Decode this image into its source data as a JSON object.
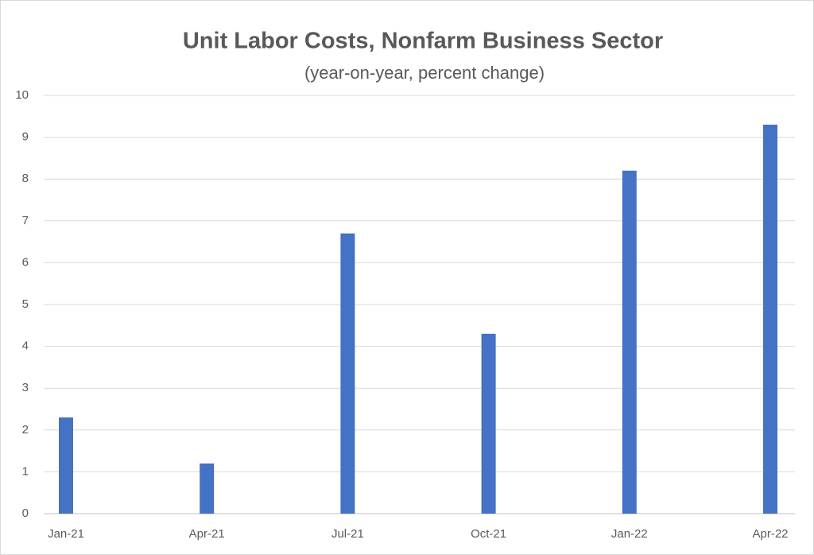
{
  "chart_data": {
    "type": "bar",
    "title": "Unit Labor Costs, Nonfarm Business Sector",
    "subtitle": "(year-on-year, percent change)",
    "categories": [
      "Jan-21",
      "Apr-21",
      "Jul-21",
      "Oct-21",
      "Jan-22",
      "Apr-22"
    ],
    "values": [
      2.3,
      1.2,
      6.7,
      4.3,
      8.2,
      9.3
    ],
    "color": "#4472c4",
    "ylim": [
      0,
      10
    ],
    "yticks": [
      0,
      1,
      2,
      3,
      4,
      5,
      6,
      7,
      8,
      9,
      10
    ],
    "grid": true
  }
}
